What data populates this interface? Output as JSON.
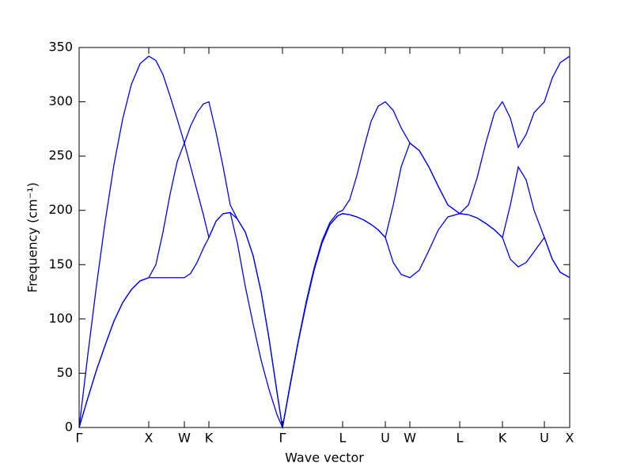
{
  "chart_data": {
    "type": "line",
    "xlabel": "Wave vector",
    "ylabel": "Frequency (cm⁻¹)",
    "xlim": [
      0,
      6.2
    ],
    "ylim": [
      0,
      350
    ],
    "yticks": [
      0,
      50,
      100,
      150,
      200,
      250,
      300,
      350
    ],
    "xticks": [
      {
        "value": 0,
        "label": "Γ"
      },
      {
        "value": 0.88,
        "label": "X"
      },
      {
        "value": 1.33,
        "label": "W"
      },
      {
        "value": 1.64,
        "label": "K"
      },
      {
        "value": 2.57,
        "label": "Γ"
      },
      {
        "value": 3.33,
        "label": "L"
      },
      {
        "value": 3.87,
        "label": "U"
      },
      {
        "value": 4.18,
        "label": "W"
      },
      {
        "value": 4.81,
        "label": "L"
      },
      {
        "value": 5.35,
        "label": "K"
      },
      {
        "value": 5.88,
        "label": "U"
      },
      {
        "value": 6.2,
        "label": "X"
      }
    ],
    "x": [
      0,
      0.11,
      0.22,
      0.33,
      0.44,
      0.55,
      0.66,
      0.77,
      0.88,
      0.97,
      1.06,
      1.15,
      1.24,
      1.33,
      1.41,
      1.49,
      1.57,
      1.64,
      1.73,
      1.82,
      1.91,
      2.0,
      2.1,
      2.2,
      2.3,
      2.4,
      2.5,
      2.57,
      2.67,
      2.77,
      2.87,
      2.97,
      3.07,
      3.17,
      3.27,
      3.33,
      3.42,
      3.51,
      3.6,
      3.69,
      3.78,
      3.87,
      3.97,
      4.07,
      4.18,
      4.3,
      4.42,
      4.54,
      4.66,
      4.81,
      4.92,
      5.03,
      5.14,
      5.25,
      5.35,
      5.45,
      5.55,
      5.65,
      5.75,
      5.88,
      5.98,
      6.08,
      6.2
    ],
    "series": [
      {
        "color": "#0000ff",
        "values": [
          0,
          67,
          131,
          190,
          242,
          284,
          316,
          335,
          342,
          338,
          325,
          305,
          284,
          262,
          278,
          290,
          298,
          300,
          272,
          240,
          205,
          192,
          180,
          158,
          125,
          82,
          33,
          0,
          41,
          80,
          116,
          147,
          172,
          189,
          198,
          200,
          210,
          232,
          258,
          282,
          296,
          300,
          292,
          276,
          262,
          255,
          240,
          222,
          205,
          197,
          205,
          230,
          262,
          290,
          300,
          285,
          258,
          270,
          290,
          300,
          322,
          336,
          342
        ]
      },
      {
        "color": "#0000ff",
        "values": [
          0,
          27,
          53,
          76,
          98,
          115,
          127,
          135,
          138,
          150,
          180,
          215,
          245,
          262,
          240,
          218,
          196,
          175,
          190,
          197,
          198,
          192,
          180,
          158,
          125,
          82,
          33,
          0,
          40,
          79,
          114,
          145,
          170,
          187,
          195,
          197,
          196,
          194,
          191,
          187,
          182,
          175,
          205,
          240,
          262,
          255,
          240,
          222,
          205,
          197,
          196,
          193,
          188,
          182,
          175,
          205,
          240,
          228,
          200,
          175,
          155,
          143,
          138
        ]
      },
      {
        "color": "#0000ff",
        "values": [
          0,
          27,
          53,
          76,
          98,
          115,
          127,
          135,
          138,
          138,
          138,
          138,
          138,
          138,
          142,
          152,
          165,
          175,
          190,
          197,
          198,
          170,
          130,
          95,
          62,
          35,
          12,
          0,
          40,
          79,
          114,
          145,
          170,
          187,
          195,
          197,
          196,
          194,
          191,
          187,
          182,
          175,
          152,
          141,
          138,
          145,
          163,
          182,
          194,
          197,
          196,
          193,
          188,
          182,
          175,
          155,
          148,
          152,
          162,
          175,
          155,
          143,
          138
        ]
      }
    ]
  }
}
